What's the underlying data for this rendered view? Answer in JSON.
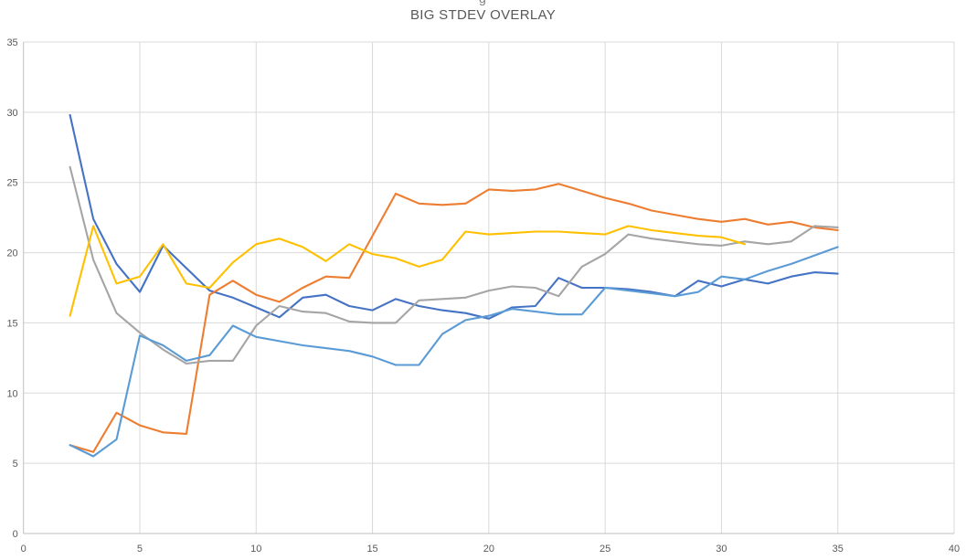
{
  "page": {
    "background": "#FFFFFF",
    "clipped_text_fragment": "g"
  },
  "chart_data": {
    "type": "line",
    "title": "BIG STDEV OVERLAY",
    "xlabel": "",
    "ylabel": "",
    "xlim": [
      0,
      40
    ],
    "ylim": [
      0,
      35
    ],
    "x_ticks": [
      0,
      5,
      10,
      15,
      20,
      25,
      30,
      35,
      40
    ],
    "y_ticks": [
      0,
      5,
      10,
      15,
      20,
      25,
      30,
      35
    ],
    "grid": true,
    "legend": "none",
    "styles": {
      "gridline_color": "#D9D9D9",
      "axis_line_color": "#BFBFBF",
      "tick_label_color": "#595959",
      "title_color": "#595959",
      "line_width": 2.1
    },
    "series": [
      {
        "name": "blue",
        "color": "#4472C4",
        "x": [
          2,
          3,
          4,
          5,
          6,
          7,
          8,
          9,
          10,
          11,
          12,
          13,
          14,
          15,
          16,
          17,
          18,
          19,
          20,
          21,
          22,
          23,
          24,
          25,
          26,
          27,
          28,
          29,
          30,
          31,
          32,
          33,
          34,
          35
        ],
        "values": [
          29.8,
          22.4,
          19.2,
          17.2,
          20.5,
          18.9,
          17.3,
          16.8,
          16.1,
          15.4,
          16.8,
          17.0,
          16.2,
          15.9,
          16.7,
          16.2,
          15.9,
          15.7,
          15.3,
          16.1,
          16.2,
          18.2,
          17.5,
          17.5,
          17.4,
          17.2,
          16.9,
          18.0,
          17.6,
          18.1,
          17.8,
          18.3,
          18.6,
          18.5
        ]
      },
      {
        "name": "orange",
        "color": "#ED7D31",
        "x": [
          2,
          3,
          4,
          5,
          6,
          7,
          8,
          9,
          10,
          11,
          12,
          13,
          14,
          15,
          16,
          17,
          18,
          19,
          20,
          21,
          22,
          23,
          24,
          25,
          26,
          27,
          28,
          29,
          30,
          31,
          32,
          33,
          34,
          35
        ],
        "values": [
          6.3,
          5.8,
          8.6,
          7.7,
          7.2,
          7.1,
          17.0,
          18.0,
          17.0,
          16.5,
          17.5,
          18.3,
          18.2,
          21.2,
          24.2,
          23.5,
          23.4,
          23.5,
          24.5,
          24.4,
          24.5,
          24.9,
          24.4,
          23.9,
          23.5,
          23.0,
          22.7,
          22.4,
          22.2,
          22.4,
          22.0,
          22.2,
          21.8,
          21.6
        ]
      },
      {
        "name": "gray",
        "color": "#A5A5A5",
        "x": [
          2,
          3,
          4,
          5,
          6,
          7,
          8,
          9,
          10,
          11,
          12,
          13,
          14,
          15,
          16,
          17,
          18,
          19,
          20,
          21,
          22,
          23,
          24,
          25,
          26,
          27,
          28,
          29,
          30,
          31,
          32,
          33,
          34,
          35
        ],
        "values": [
          26.1,
          19.5,
          15.7,
          14.3,
          13.1,
          12.1,
          12.3,
          12.3,
          14.8,
          16.2,
          15.8,
          15.7,
          15.1,
          15.0,
          15.0,
          16.6,
          16.7,
          16.8,
          17.3,
          17.6,
          17.5,
          16.9,
          19.0,
          19.9,
          21.3,
          21.0,
          20.8,
          20.6,
          20.5,
          20.8,
          20.6,
          20.8,
          21.9,
          21.8
        ]
      },
      {
        "name": "gold",
        "color": "#FFC000",
        "x": [
          2,
          3,
          4,
          5,
          6,
          7,
          8,
          9,
          10,
          11,
          12,
          13,
          14,
          15,
          16,
          17,
          18,
          19,
          20,
          21,
          22,
          23,
          24,
          25,
          26,
          27,
          28,
          29,
          30,
          31
        ],
        "values": [
          15.5,
          21.9,
          17.8,
          18.3,
          20.6,
          17.8,
          17.5,
          19.3,
          20.6,
          21.0,
          20.4,
          19.4,
          20.6,
          19.9,
          19.6,
          19.0,
          19.5,
          21.5,
          21.3,
          21.4,
          21.5,
          21.5,
          21.4,
          21.3,
          21.9,
          21.6,
          21.4,
          21.2,
          21.1,
          20.6
        ]
      },
      {
        "name": "light-blue",
        "color": "#5B9BD5",
        "x": [
          2,
          3,
          4,
          5,
          6,
          7,
          8,
          9,
          10,
          11,
          12,
          13,
          14,
          15,
          16,
          17,
          18,
          19,
          20,
          21,
          22,
          23,
          24,
          25,
          26,
          27,
          28,
          29,
          30,
          31,
          32,
          33,
          34,
          35
        ],
        "values": [
          6.3,
          5.5,
          6.7,
          14.1,
          13.4,
          12.3,
          12.7,
          14.8,
          14.0,
          13.7,
          13.4,
          13.2,
          13.0,
          12.6,
          12.0,
          12.0,
          14.2,
          15.2,
          15.5,
          16.0,
          15.8,
          15.6,
          15.6,
          17.5,
          17.3,
          17.1,
          16.9,
          17.2,
          18.3,
          18.1,
          18.7,
          19.2,
          19.8,
          20.4
        ]
      }
    ]
  }
}
